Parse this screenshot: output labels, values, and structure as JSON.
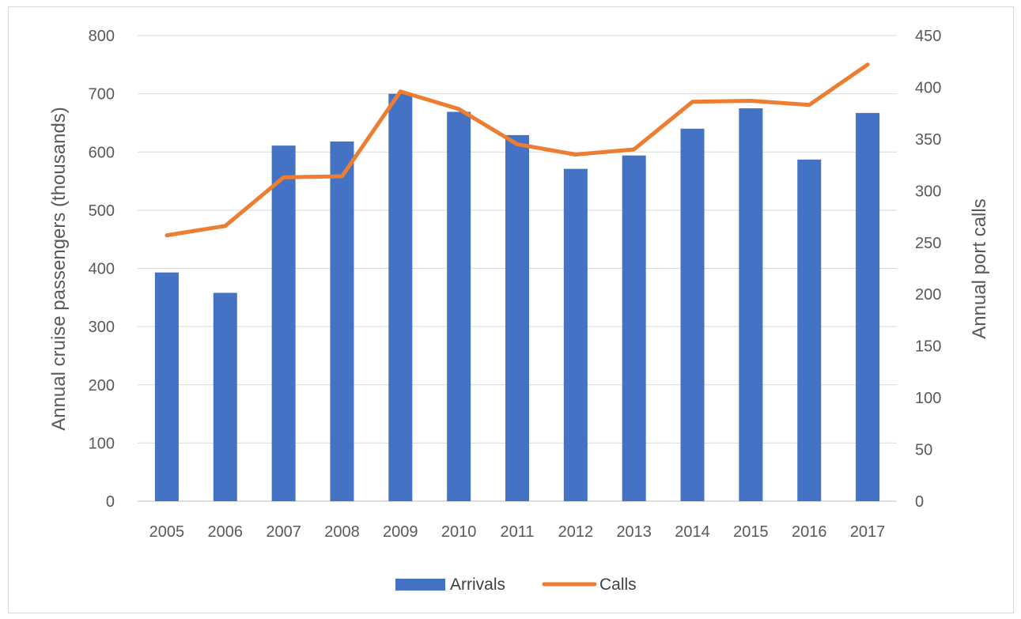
{
  "chart_data": {
    "type": "bar",
    "categories": [
      "2005",
      "2006",
      "2007",
      "2008",
      "2009",
      "2010",
      "2011",
      "2012",
      "2013",
      "2014",
      "2015",
      "2016",
      "2017"
    ],
    "series": [
      {
        "name": "Arrivals",
        "type": "bar",
        "axis": "left",
        "color": "#4472c4",
        "values": [
          393,
          358,
          611,
          618,
          700,
          669,
          629,
          571,
          594,
          640,
          675,
          587,
          667
        ]
      },
      {
        "name": "Calls",
        "type": "line",
        "axis": "right",
        "color": "#ed7d31",
        "values": [
          257,
          266,
          313,
          314,
          396,
          379,
          345,
          335,
          340,
          386,
          387,
          383,
          422
        ]
      }
    ],
    "ylabel": "Annual cruise passengers (thousands)",
    "y2label": "Annual port calls",
    "ylim": [
      0,
      800
    ],
    "y2lim": [
      0,
      450
    ],
    "yticks": [
      "0",
      "100",
      "200",
      "300",
      "400",
      "500",
      "600",
      "700",
      "800"
    ],
    "y2ticks": [
      "0",
      "50",
      "100",
      "150",
      "200",
      "250",
      "300",
      "350",
      "400",
      "450"
    ],
    "grid": true,
    "legend": "bottom"
  }
}
